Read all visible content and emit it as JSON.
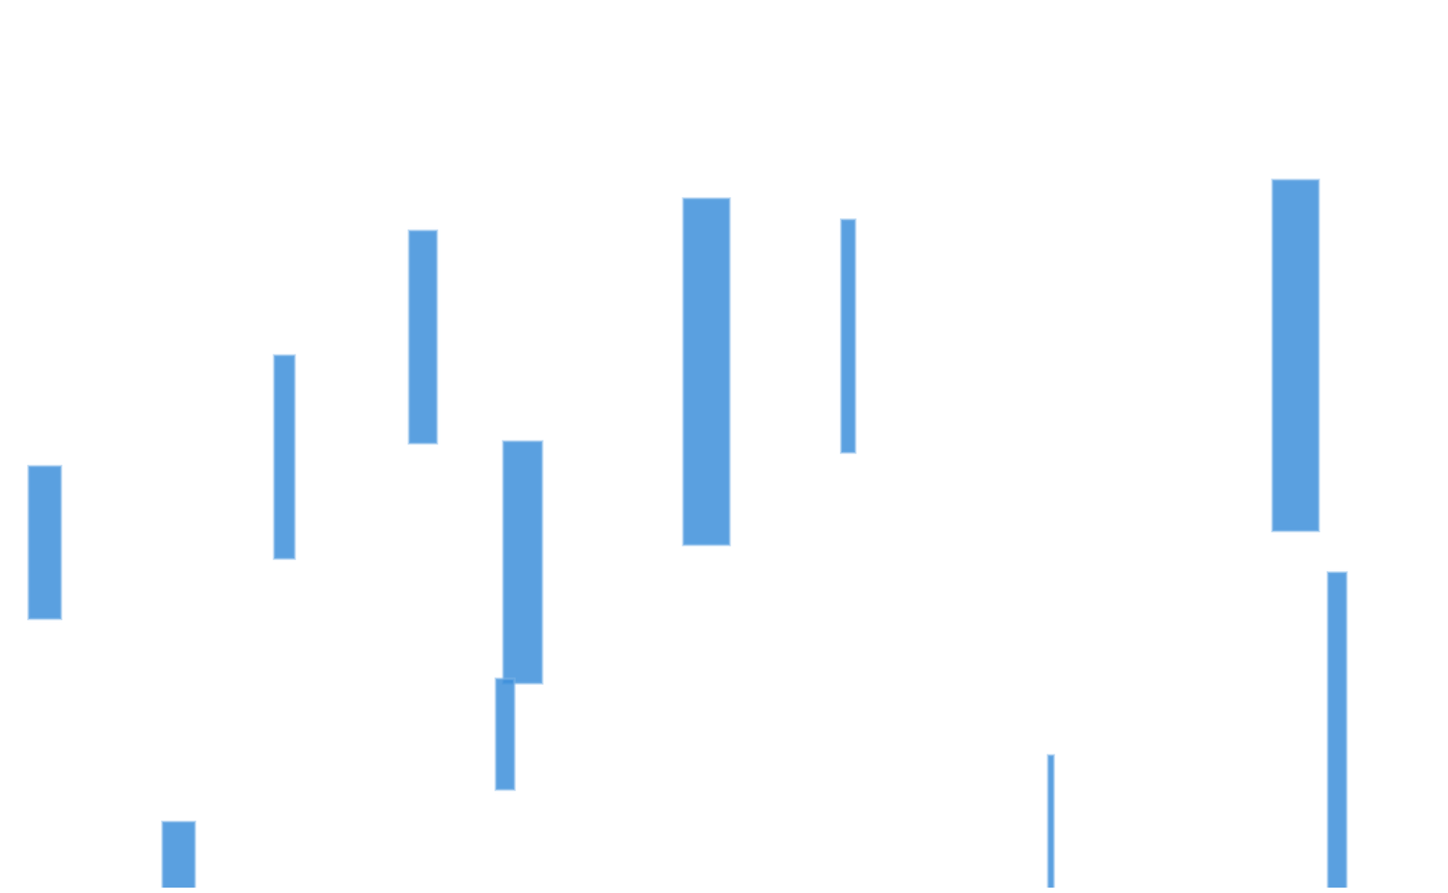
{
  "chart_data": {
    "type": "floating_bar",
    "tick_labels": false,
    "grid": false,
    "color": "#3d8fdb",
    "xlim": [
      0,
      1568
    ],
    "ylim": [
      0,
      967
    ],
    "xticks": [
      0,
      1568
    ],
    "yticks": [
      0,
      967
    ],
    "bars": [
      {
        "x0": 31,
        "x1": 66,
        "low": 297,
        "high": 462
      },
      {
        "x0": 297,
        "x1": 319,
        "low": 362,
        "high": 582
      },
      {
        "x0": 443,
        "x1": 473,
        "low": 487,
        "high": 717
      },
      {
        "x0": 545,
        "x1": 587,
        "low": 227,
        "high": 489
      },
      {
        "x0": 537,
        "x1": 557,
        "low": 112,
        "high": 232
      },
      {
        "x0": 740,
        "x1": 790,
        "low": 377,
        "high": 752
      },
      {
        "x0": 911,
        "x1": 926,
        "low": 477,
        "high": 729
      },
      {
        "x0": 1378,
        "x1": 1428,
        "low": 392,
        "high": 772
      },
      {
        "x0": 1438,
        "x1": 1458,
        "low": 0,
        "high": 347
      },
      {
        "x0": 1135,
        "x1": 1141,
        "low": 0,
        "high": 149
      },
      {
        "x0": 176,
        "x1": 211,
        "low": 0,
        "high": 77
      }
    ]
  }
}
